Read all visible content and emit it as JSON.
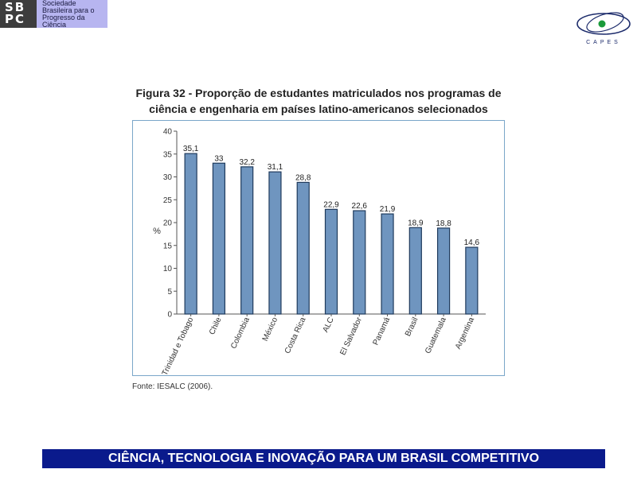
{
  "header": {
    "sbpc_logo": {
      "mark_lines": [
        "SB",
        "PC"
      ],
      "text_lines": [
        "Sociedade",
        "Brasileira para o",
        "Progresso da",
        "Ciência"
      ],
      "bg_color": "#b7b5f0"
    },
    "capes_logo": {
      "label": "CAPES",
      "accent": "#1a9a3a"
    }
  },
  "figure": {
    "title_line1": "Figura 32 - Proporção de estudantes matriculados nos programas de",
    "title_line2": "ciência e engenharia em países latino-americanos selecionados",
    "source": "Fonte: IESALC (2006)."
  },
  "chart_data": {
    "type": "bar",
    "categories": [
      "Trinidad e Tobago",
      "Chile",
      "Colombia",
      "México",
      "Costa Rica",
      "ALC",
      "El Salvador",
      "Panamá",
      "Brasil",
      "Guatemala",
      "Argentina"
    ],
    "values": [
      35.1,
      33,
      32.2,
      31.1,
      28.8,
      22.9,
      22.6,
      21.9,
      18.9,
      18.8,
      14.6
    ],
    "value_labels": [
      "35,1",
      "33",
      "32,2",
      "31,1",
      "28,8",
      "22,9",
      "22,6",
      "21,9",
      "18,9",
      "18,8",
      "14,6"
    ],
    "ylabel": "%",
    "ylim": [
      0,
      40
    ],
    "yticks": [
      0,
      5,
      10,
      15,
      20,
      25,
      30,
      35,
      40
    ],
    "bar_color": "#6f95bf",
    "bar_edge": "#1f3a5c",
    "grid": false
  },
  "footer": {
    "banner": "CIÊNCIA, TECNOLOGIA E INOVAÇÃO PARA UM BRASIL COMPETITIVO"
  }
}
